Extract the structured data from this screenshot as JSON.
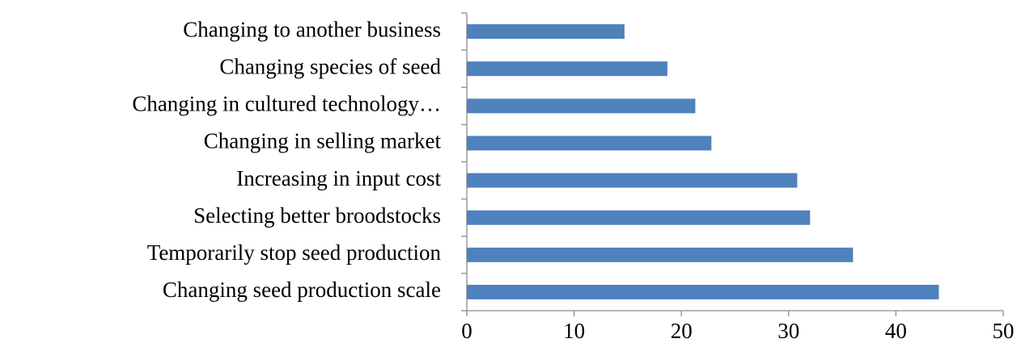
{
  "chart_data": {
    "type": "barh",
    "categories": [
      "Changing to another business",
      "Changing species of seed",
      "Changing in cultured technology…",
      "Changing in selling market",
      "Increasing in input cost",
      "Selecting better broodstocks",
      "Temporarily stop seed production",
      "Changing seed production scale"
    ],
    "values": [
      14.7,
      18.7,
      21.3,
      22.8,
      30.8,
      32.0,
      36.0,
      44.0
    ],
    "color": "#4f81bd",
    "xlim": [
      0,
      50
    ],
    "xticks": [
      0,
      10,
      20,
      30,
      40,
      50
    ],
    "grid": false
  }
}
